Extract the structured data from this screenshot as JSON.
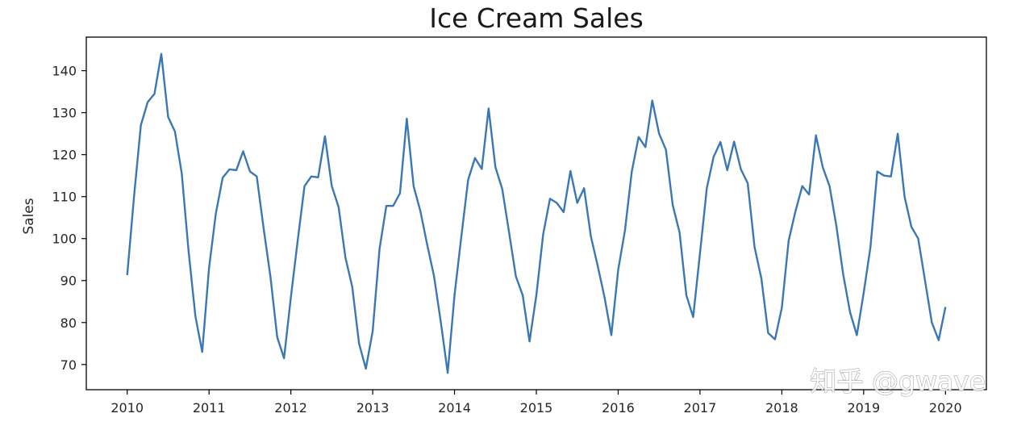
{
  "watermark": "知乎 @gwave",
  "colors": {
    "line": "#3a78b5",
    "axes": "#000000",
    "background": "#ffffff"
  },
  "chart_data": {
    "type": "line",
    "title": "Ice Cream Sales",
    "xlabel": "",
    "ylabel": "Sales",
    "xlim": [
      2009.5,
      2020.5
    ],
    "ylim": [
      64,
      148
    ],
    "x_ticks": [
      "2010",
      "2011",
      "2012",
      "2013",
      "2014",
      "2015",
      "2016",
      "2017",
      "2018",
      "2019",
      "2020"
    ],
    "y_ticks": [
      70,
      80,
      90,
      100,
      110,
      120,
      130,
      140
    ],
    "grid": false,
    "x_start": "2010-01",
    "frequency": "monthly",
    "series": [
      {
        "values": [
          91.3,
          110.0,
          127.0,
          132.5,
          134.5,
          144.0,
          129.0,
          125.5,
          115.5,
          97.0,
          81.5,
          73.0,
          93.0,
          106.0,
          114.5,
          116.5,
          116.3,
          120.8,
          116.0,
          114.8,
          102.5,
          91.0,
          76.5,
          71.5,
          86.0,
          99.5,
          112.5,
          114.8,
          114.6,
          124.4,
          112.5,
          107.5,
          95.5,
          88.5,
          75.0,
          69.0,
          78.0,
          97.5,
          107.8,
          107.8,
          110.8,
          128.6,
          112.5,
          106.5,
          98.5,
          91.0,
          80.0,
          68.0,
          86.5,
          100.5,
          114.0,
          119.2,
          116.6,
          131.0,
          117.0,
          111.8,
          101.5,
          91.0,
          86.5,
          75.5,
          86.5,
          101.0,
          109.5,
          108.5,
          106.3,
          116.1,
          108.5,
          112.0,
          100.5,
          93.5,
          86.0,
          77.0,
          92.5,
          102.0,
          116.0,
          124.2,
          121.8,
          132.9,
          125.0,
          121.2,
          108.0,
          101.5,
          86.5,
          81.3,
          96.5,
          112.0,
          119.5,
          123.0,
          116.3,
          123.1,
          116.5,
          113.2,
          98.0,
          90.5,
          77.5,
          76.0,
          83.5,
          99.5,
          106.5,
          112.5,
          110.5,
          124.6,
          117.0,
          112.5,
          103.0,
          91.5,
          82.5,
          77.0,
          87.0,
          98.0,
          116.0,
          115.0,
          114.8,
          125.0,
          110.0,
          102.8,
          100.0,
          90.0,
          80.0,
          75.8,
          83.7
        ]
      }
    ]
  }
}
